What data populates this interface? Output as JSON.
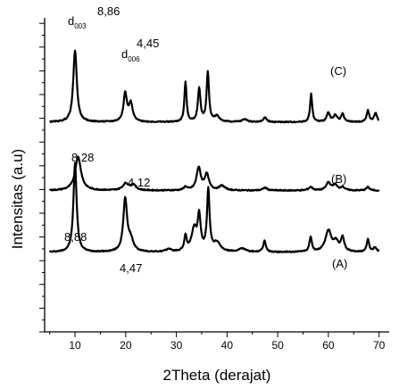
{
  "chart_data": {
    "type": "line",
    "xlabel": "2Theta (derajat)",
    "ylabel": "Intensitas (a.u)",
    "xlim": [
      4,
      72
    ],
    "x_ticks": [
      10,
      20,
      30,
      40,
      50,
      60,
      70
    ],
    "grid": false,
    "legend": "none",
    "line_color": "#000000",
    "series": [
      {
        "name": "(C)",
        "baseline": 7.1,
        "noise": 0.05,
        "peaks": [
          {
            "x": 10.0,
            "h": 7.9,
            "w": 0.38
          },
          {
            "x": 19.9,
            "h": 4.7,
            "w": 0.45
          },
          {
            "x": 21.0,
            "h": 1.0,
            "w": 0.6
          },
          {
            "x": 28.5,
            "h": 0.25,
            "w": 0.6
          },
          {
            "x": 31.8,
            "h": 1.3,
            "w": 0.3
          },
          {
            "x": 33.5,
            "h": 2.0,
            "w": 0.6
          },
          {
            "x": 34.5,
            "h": 3.0,
            "w": 0.35
          },
          {
            "x": 36.3,
            "h": 5.5,
            "w": 0.3
          },
          {
            "x": 38.0,
            "h": 0.8,
            "w": 0.8
          },
          {
            "x": 43.0,
            "h": 0.3,
            "w": 0.8
          },
          {
            "x": 47.4,
            "h": 1.0,
            "w": 0.3
          },
          {
            "x": 56.5,
            "h": 1.3,
            "w": 0.3
          },
          {
            "x": 60.0,
            "h": 1.9,
            "w": 0.7
          },
          {
            "x": 61.5,
            "h": 0.8,
            "w": 0.6
          },
          {
            "x": 62.8,
            "h": 1.2,
            "w": 0.4
          },
          {
            "x": 67.8,
            "h": 1.1,
            "w": 0.3
          },
          {
            "x": 69.2,
            "h": 0.4,
            "w": 0.4
          }
        ]
      },
      {
        "name": "(B)",
        "baseline": 12.6,
        "noise": 0.05,
        "peaks": [
          {
            "x": 10.6,
            "h": 3.0,
            "w": 0.7
          },
          {
            "x": 20.0,
            "h": 0.6,
            "w": 0.7
          },
          {
            "x": 21.5,
            "h": 0.5,
            "w": 0.6
          },
          {
            "x": 31.8,
            "h": 0.3,
            "w": 0.4
          },
          {
            "x": 34.4,
            "h": 2.0,
            "w": 0.5
          },
          {
            "x": 36.0,
            "h": 1.4,
            "w": 0.5
          },
          {
            "x": 39.0,
            "h": 0.4,
            "w": 0.7
          },
          {
            "x": 47.5,
            "h": 0.25,
            "w": 0.5
          },
          {
            "x": 56.5,
            "h": 0.3,
            "w": 0.5
          },
          {
            "x": 60.0,
            "h": 0.7,
            "w": 0.5
          },
          {
            "x": 61.3,
            "h": 0.5,
            "w": 0.5
          },
          {
            "x": 62.8,
            "h": 0.3,
            "w": 0.5
          },
          {
            "x": 67.8,
            "h": 0.3,
            "w": 0.4
          }
        ]
      },
      {
        "name": "(A)",
        "baseline": 18.7,
        "noise": 0.05,
        "peaks": [
          {
            "x": 10.0,
            "h": 6.4,
            "w": 0.42
          },
          {
            "x": 19.9,
            "h": 2.5,
            "w": 0.4
          },
          {
            "x": 21.0,
            "h": 1.6,
            "w": 0.45
          },
          {
            "x": 31.8,
            "h": 3.6,
            "w": 0.25
          },
          {
            "x": 34.5,
            "h": 3.0,
            "w": 0.3
          },
          {
            "x": 36.2,
            "h": 4.4,
            "w": 0.28
          },
          {
            "x": 38.0,
            "h": 0.5,
            "w": 0.6
          },
          {
            "x": 43.5,
            "h": 0.25,
            "w": 0.6
          },
          {
            "x": 47.5,
            "h": 0.4,
            "w": 0.4
          },
          {
            "x": 56.6,
            "h": 2.5,
            "w": 0.25
          },
          {
            "x": 60.0,
            "h": 0.8,
            "w": 0.4
          },
          {
            "x": 61.4,
            "h": 0.6,
            "w": 0.4
          },
          {
            "x": 62.8,
            "h": 0.7,
            "w": 0.35
          },
          {
            "x": 67.8,
            "h": 1.0,
            "w": 0.3
          },
          {
            "x": 69.3,
            "h": 0.8,
            "w": 0.35
          }
        ]
      }
    ],
    "annotations": [
      {
        "series": "(C)",
        "x": 10.0,
        "label": "d",
        "sub": "003",
        "value": "8,86"
      },
      {
        "series": "(C)",
        "x": 19.9,
        "label": "d",
        "sub": "006",
        "value": "4,45"
      },
      {
        "series": "(B)",
        "x": 10.6,
        "value": "8,28"
      },
      {
        "series": "(B)",
        "x": 21.5,
        "value": "4,12"
      },
      {
        "series": "(A)",
        "x": 10.0,
        "value": "8,88"
      },
      {
        "series": "(A)",
        "x": 19.9,
        "value": "4,47"
      }
    ]
  }
}
